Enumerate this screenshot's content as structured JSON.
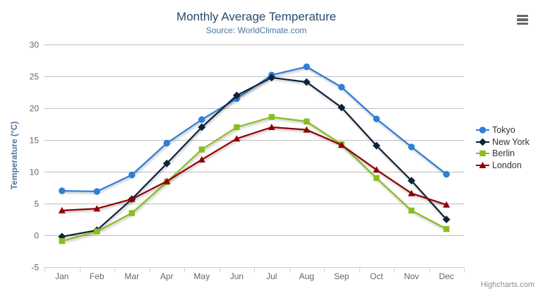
{
  "chart_data": {
    "type": "line",
    "title": "Monthly Average Temperature",
    "subtitle": "Source: WorldClimate.com",
    "categories": [
      "Jan",
      "Feb",
      "Mar",
      "Apr",
      "May",
      "Jun",
      "Jul",
      "Aug",
      "Sep",
      "Oct",
      "Nov",
      "Dec"
    ],
    "xlabel": "",
    "ylabel": "Temperature (°C)",
    "ylim": [
      -5,
      30
    ],
    "ytick_interval": 5,
    "grid": true,
    "legend_position": "right",
    "series": [
      {
        "name": "Tokyo",
        "color": "#2f7ed8",
        "marker": "circle",
        "values": [
          7.0,
          6.9,
          9.5,
          14.5,
          18.2,
          21.5,
          25.2,
          26.5,
          23.3,
          18.3,
          13.9,
          9.6
        ]
      },
      {
        "name": "New York",
        "color": "#0d233a",
        "marker": "diamond",
        "values": [
          -0.2,
          0.8,
          5.7,
          11.3,
          17.0,
          22.0,
          24.8,
          24.1,
          20.1,
          14.1,
          8.6,
          2.5
        ]
      },
      {
        "name": "Berlin",
        "color": "#8bbc21",
        "marker": "square",
        "values": [
          -0.9,
          0.6,
          3.5,
          8.4,
          13.5,
          17.0,
          18.6,
          17.9,
          14.3,
          9.0,
          3.9,
          1.0
        ]
      },
      {
        "name": "London",
        "color": "#910000",
        "marker": "triangle",
        "values": [
          3.9,
          4.2,
          5.7,
          8.5,
          11.9,
          15.2,
          17.0,
          16.6,
          14.2,
          10.3,
          6.6,
          4.8
        ]
      }
    ]
  },
  "credits": {
    "text": "Highcharts.com"
  },
  "icons": {
    "export_menu": "hamburger-menu-icon"
  },
  "theme": {
    "title_color": "#274b6d",
    "subtitle_color": "#4d759e",
    "y_title_color": "#4d759e",
    "axis_label_color": "#666666",
    "grid_color": "#c0c0c0",
    "axis_line_color": "#c0d0e0",
    "legend_text_color": "#333333",
    "credits_color": "#909090",
    "export_icon_color": "#666666",
    "background": "#ffffff"
  }
}
